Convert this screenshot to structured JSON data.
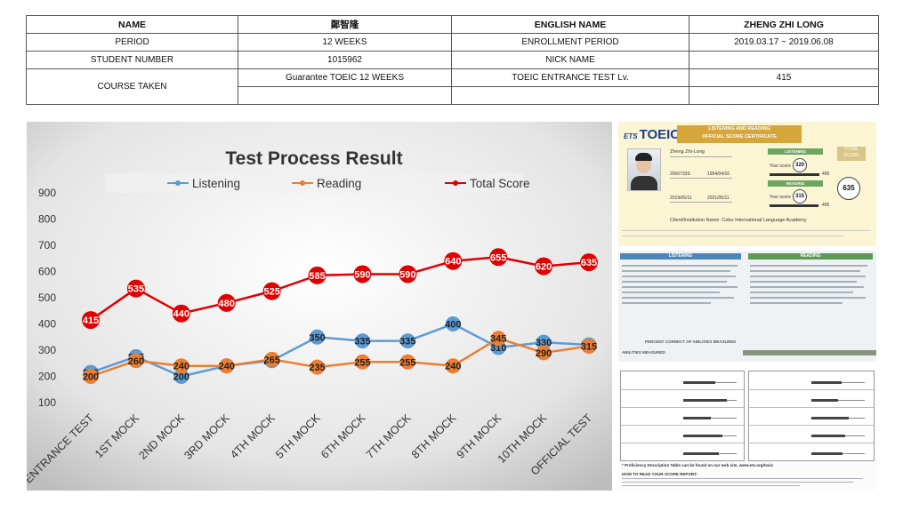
{
  "info": {
    "name_label": "NAME",
    "name_value": "鄭智隆",
    "english_name_label": "ENGLISH NAME",
    "english_name_value": "ZHENG ZHI LONG",
    "period_label": "PERIOD",
    "period_value": "12 WEEKS",
    "enrollment_label": "ENROLLMENT PERIOD",
    "enrollment_value": "2019.03.17 ~ 2019.06.08",
    "student_number_label": "STUDENT NUMBER",
    "student_number_value": "1015962",
    "nick_label": "NICK NAME",
    "nick_value": "",
    "course_label": "COURSE TAKEN",
    "course_value": "Guarantee TOEIC 12 WEEKS",
    "entrance_label": "TOEIC ENTRANCE TEST Lv.",
    "entrance_value": "415"
  },
  "chart_data": {
    "type": "line",
    "title": "Test Process Result",
    "categories": [
      "ENTRANCE TEST",
      "1ST MOCK",
      "2ND MOCK",
      "3RD MOCK",
      "4TH MOCK",
      "5TH MOCK",
      "6TH MOCK",
      "7TH MOCK",
      "8TH MOCK",
      "9TH MOCK",
      "10TH MOCK",
      "OFFICIAL TEST"
    ],
    "ylim": [
      100,
      900
    ],
    "yticks": [
      100,
      200,
      300,
      400,
      500,
      600,
      700,
      800,
      900
    ],
    "legend_position": "top",
    "grid": false,
    "series": [
      {
        "name": "Listening",
        "color": "#5b9bd5",
        "values": [
          215,
          275,
          200,
          240,
          260,
          350,
          335,
          335,
          400,
          310,
          330,
          320
        ]
      },
      {
        "name": "Reading",
        "color": "#ed7d31",
        "values": [
          200,
          260,
          240,
          240,
          265,
          235,
          255,
          255,
          240,
          345,
          290,
          315
        ]
      },
      {
        "name": "Total Score",
        "color": "#e00000",
        "values": [
          415,
          535,
          440,
          480,
          525,
          585,
          590,
          590,
          640,
          655,
          620,
          635
        ]
      }
    ]
  },
  "certificate": {
    "logo": "TOEIC",
    "logo_prefix": "ETS",
    "heading": "LISTENING AND READING",
    "subheading": "OFFICIAL SCORE CERTIFICATE",
    "candidate_name": "Zheng Zhi-Long",
    "listening_label": "LISTENING",
    "reading_label": "READING",
    "total_label": "TOTAL SCORE",
    "your_score": "Your score",
    "listening_score": "320",
    "reading_score": "315",
    "total_score": "635",
    "institution": "Client/Institution Name: Cebu International Language Academy",
    "id_number": "2000733S",
    "birth_date": "1994/04/16",
    "test_date": "2019/05/11",
    "valid_date": "2021/05/11",
    "scale_max": "495",
    "section_listening": "LISTENING",
    "section_reading": "READING",
    "abilities_measured": "ABILITIES MEASURED",
    "percent_correct": "PERCENT CORRECT OF ABILITIES MEASURED",
    "proficiency_note": "* Proficiency Description Table can be found on our web site, www.ets.org/toeic",
    "how_to_read": "HOW TO READ YOUR SCORE REPORT:"
  }
}
